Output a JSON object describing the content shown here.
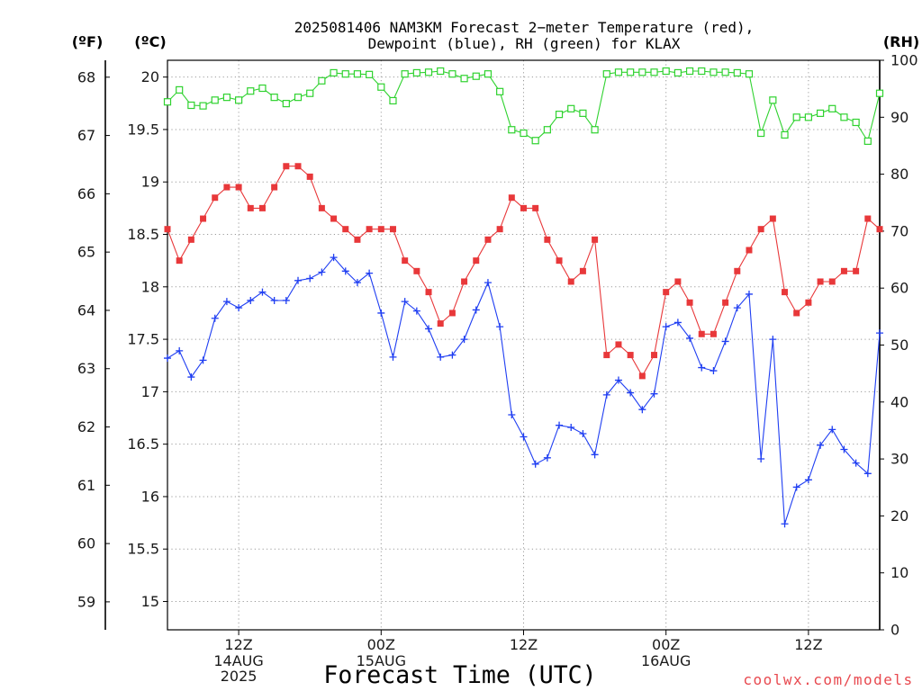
{
  "credit": "coolwx.com/models",
  "colors": {
    "credit": "#e8494f"
  },
  "chart_data": {
    "type": "line",
    "title": [
      "2025081406 NAM3KM Forecast 2−meter Temperature (red),",
      "Dewpoint (blue), RH (green) for KLAX"
    ],
    "xlabel": "Forecast Time (UTC)",
    "grid": true,
    "xlim": [
      "06Z14AUG2025",
      "18Z16AUG2025"
    ],
    "x_ticks": [
      {
        "at": "12Z14AUG2025",
        "label": [
          "12Z",
          "14AUG",
          "2025"
        ]
      },
      {
        "at": "00Z15AUG2025",
        "label": [
          "00Z",
          "15AUG"
        ]
      },
      {
        "at": "12Z15AUG2025",
        "label": [
          "12Z"
        ]
      },
      {
        "at": "00Z16AUG2025",
        "label": [
          "00Z",
          "16AUG"
        ]
      },
      {
        "at": "12Z16AUG2025",
        "label": [
          "12Z"
        ]
      }
    ],
    "y_axes": {
      "f": {
        "label": "(ºF)",
        "ticks": [
          59,
          60,
          61,
          62,
          63,
          64,
          65,
          66,
          67,
          68
        ],
        "lim": [
          58.52,
          68.29
        ]
      },
      "c": {
        "label": "(ºC)",
        "ticks": [
          15,
          15.5,
          16,
          16.5,
          17,
          17.5,
          18,
          18.5,
          19,
          19.5,
          20
        ],
        "lim": [
          14.73,
          20.16
        ]
      },
      "rh": {
        "label": "(RH)",
        "ticks": [
          0,
          10,
          20,
          30,
          40,
          50,
          60,
          70,
          80,
          90,
          100
        ],
        "lim": [
          0,
          100
        ]
      }
    },
    "x": [
      "06Z14AUG2025",
      "07Z14AUG2025",
      "08Z14AUG2025",
      "09Z14AUG2025",
      "10Z14AUG2025",
      "11Z14AUG2025",
      "12Z14AUG2025",
      "13Z14AUG2025",
      "14Z14AUG2025",
      "15Z14AUG2025",
      "16Z14AUG2025",
      "17Z14AUG2025",
      "18Z14AUG2025",
      "19Z14AUG2025",
      "20Z14AUG2025",
      "21Z14AUG2025",
      "22Z14AUG2025",
      "23Z14AUG2025",
      "00Z15AUG2025",
      "01Z15AUG2025",
      "02Z15AUG2025",
      "03Z15AUG2025",
      "04Z15AUG2025",
      "05Z15AUG2025",
      "06Z15AUG2025",
      "07Z15AUG2025",
      "08Z15AUG2025",
      "09Z15AUG2025",
      "10Z15AUG2025",
      "11Z15AUG2025",
      "12Z15AUG2025",
      "13Z15AUG2025",
      "14Z15AUG2025",
      "15Z15AUG2025",
      "16Z15AUG2025",
      "17Z15AUG2025",
      "18Z15AUG2025",
      "19Z15AUG2025",
      "20Z15AUG2025",
      "21Z15AUG2025",
      "22Z15AUG2025",
      "23Z15AUG2025",
      "00Z16AUG2025",
      "01Z16AUG2025",
      "02Z16AUG2025",
      "03Z16AUG2025",
      "04Z16AUG2025",
      "05Z16AUG2025",
      "06Z16AUG2025",
      "07Z16AUG2025",
      "08Z16AUG2025",
      "09Z16AUG2025",
      "10Z16AUG2025",
      "11Z16AUG2025",
      "12Z16AUG2025",
      "13Z16AUG2025",
      "14Z16AUG2025",
      "15Z16AUG2025",
      "16Z16AUG2025",
      "17Z16AUG2025",
      "18Z16AUG2025"
    ],
    "series": [
      {
        "name": "RH",
        "axis": "rh",
        "color": "#2fd22f",
        "marker": "open-square",
        "values": [
          92.7,
          94.8,
          92.1,
          92.0,
          93.0,
          93.5,
          93.0,
          94.6,
          95.1,
          93.5,
          92.4,
          93.5,
          94.2,
          96.4,
          97.8,
          97.6,
          97.6,
          97.5,
          95.3,
          92.9,
          97.6,
          97.8,
          97.9,
          98.1,
          97.6,
          96.8,
          97.2,
          97.6,
          94.5,
          87.8,
          87.2,
          85.9,
          87.8,
          90.5,
          91.5,
          90.7,
          87.8,
          97.6,
          97.9,
          97.9,
          97.9,
          97.9,
          98.1,
          97.8,
          98.1,
          98.1,
          97.9,
          97.9,
          97.8,
          97.6,
          87.2,
          93.0,
          86.9,
          90.0,
          90.0,
          90.7,
          91.5,
          90.0,
          89.1,
          85.8,
          94.2
        ]
      },
      {
        "name": "Temperature",
        "axis": "c",
        "color": "#e8383a",
        "marker": "filled-square",
        "values": [
          18.55,
          18.25,
          18.45,
          18.65,
          18.85,
          18.95,
          18.95,
          18.75,
          18.75,
          18.95,
          19.15,
          19.15,
          19.05,
          18.75,
          18.65,
          18.55,
          18.45,
          18.55,
          18.55,
          18.55,
          18.25,
          18.15,
          17.95,
          17.65,
          17.75,
          18.05,
          18.25,
          18.45,
          18.55,
          18.85,
          18.75,
          18.75,
          18.45,
          18.25,
          18.05,
          18.15,
          18.45,
          17.35,
          17.45,
          17.35,
          17.15,
          17.35,
          17.95,
          18.05,
          17.85,
          17.55,
          17.55,
          17.85,
          18.15,
          18.35,
          18.55,
          18.65,
          17.95,
          17.75,
          17.85,
          18.05,
          18.05,
          18.15,
          18.15,
          18.65,
          18.55
        ]
      },
      {
        "name": "Dewpoint",
        "axis": "c",
        "color": "#1f3ef2",
        "marker": "plus",
        "values": [
          17.32,
          17.39,
          17.14,
          17.3,
          17.7,
          17.86,
          17.8,
          17.87,
          17.95,
          17.87,
          17.87,
          18.06,
          18.08,
          18.14,
          18.28,
          18.15,
          18.04,
          18.13,
          17.75,
          17.33,
          17.86,
          17.77,
          17.6,
          17.33,
          17.35,
          17.5,
          17.78,
          18.04,
          17.62,
          16.78,
          16.57,
          16.31,
          16.37,
          16.68,
          16.66,
          16.6,
          16.4,
          16.97,
          17.11,
          16.99,
          16.83,
          16.98,
          17.62,
          17.66,
          17.51,
          17.23,
          17.2,
          17.48,
          17.8,
          17.93,
          16.36,
          17.5,
          15.74,
          16.09,
          16.16,
          16.49,
          16.64,
          16.45,
          16.32,
          16.22,
          17.56
        ]
      }
    ]
  }
}
